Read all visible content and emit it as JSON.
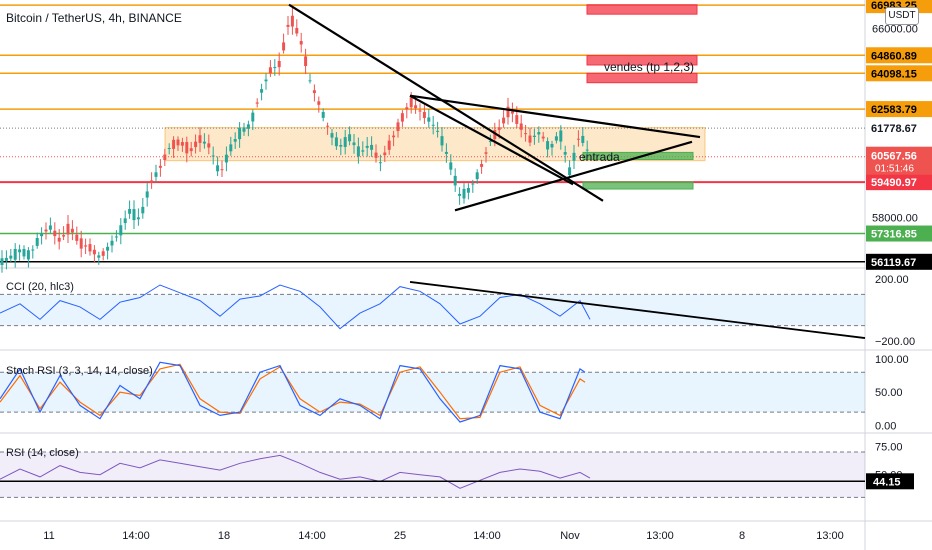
{
  "header": {
    "title": "Bitcoin / TetherUS, 4h, BINANCE",
    "currency_button": "USDT"
  },
  "colors": {
    "up": "#26a69a",
    "down": "#ef5350",
    "orange": "#f59d0b",
    "red": "#f23645",
    "green": "#4caf50",
    "cci": "#2962ff",
    "stoch_k": "#2962ff",
    "stoch_d": "#ff6d00",
    "rsi": "#7e57c2"
  },
  "annotations": {
    "sell_note": "vendes (tp 1,2,3)",
    "entry_note": "entrada"
  },
  "chart_data": [
    {
      "type": "candlestick",
      "pane": "price",
      "ylim": [
        55900,
        67200
      ],
      "x_ticks": [
        "11",
        "14:00",
        "18",
        "14:00",
        "25",
        "14:00",
        "Nov",
        "13:00",
        "8",
        "13:00"
      ],
      "y_ticks": [
        58000,
        66000
      ],
      "horizontal_levels": [
        {
          "value": 66983.25,
          "label": "66983.25",
          "color": "orange"
        },
        {
          "value": 64860.89,
          "label": "64860.89",
          "color": "orange"
        },
        {
          "value": 64098.15,
          "label": "64098.15",
          "color": "orange"
        },
        {
          "value": 62583.79,
          "label": "62583.79",
          "color": "orange"
        },
        {
          "value": 61778.67,
          "label": "61778.67",
          "color": "neutral"
        },
        {
          "value": 59490.97,
          "label": "59490.97",
          "color": "red"
        },
        {
          "value": 57316.85,
          "label": "57316.85",
          "color": "green"
        },
        {
          "value": 56119.67,
          "label": "56119.67",
          "color": "black"
        }
      ],
      "last_price": {
        "value": 60567.56,
        "label": "60567.56",
        "countdown": "01:51:46"
      },
      "close_path": [
        [
          0,
          56100
        ],
        [
          10,
          56300
        ],
        [
          20,
          56600
        ],
        [
          30,
          56400
        ],
        [
          40,
          57200
        ],
        [
          50,
          57600
        ],
        [
          60,
          57000
        ],
        [
          70,
          57600
        ],
        [
          80,
          56900
        ],
        [
          90,
          56700
        ],
        [
          100,
          56300
        ],
        [
          110,
          56800
        ],
        [
          120,
          57400
        ],
        [
          130,
          58300
        ],
        [
          140,
          57900
        ],
        [
          150,
          59400
        ],
        [
          160,
          60100
        ],
        [
          170,
          61000
        ],
        [
          180,
          61200
        ],
        [
          190,
          60800
        ],
        [
          200,
          61300
        ],
        [
          210,
          61000
        ],
        [
          220,
          59800
        ],
        [
          230,
          60900
        ],
        [
          240,
          61600
        ],
        [
          250,
          61900
        ],
        [
          260,
          63200
        ],
        [
          270,
          64200
        ],
        [
          280,
          64500
        ],
        [
          290,
          66500
        ],
        [
          300,
          65600
        ],
        [
          310,
          63800
        ],
        [
          320,
          62700
        ],
        [
          330,
          61600
        ],
        [
          340,
          61000
        ],
        [
          350,
          61400
        ],
        [
          360,
          60700
        ],
        [
          370,
          61100
        ],
        [
          380,
          60300
        ],
        [
          390,
          61100
        ],
        [
          400,
          62000
        ],
        [
          410,
          62900
        ],
        [
          420,
          62500
        ],
        [
          430,
          62100
        ],
        [
          440,
          61500
        ],
        [
          450,
          60300
        ],
        [
          460,
          58900
        ],
        [
          470,
          59200
        ],
        [
          480,
          60000
        ],
        [
          490,
          61200
        ],
        [
          500,
          61800
        ],
        [
          510,
          62600
        ],
        [
          520,
          61900
        ],
        [
          530,
          61300
        ],
        [
          540,
          61600
        ],
        [
          550,
          60900
        ],
        [
          560,
          61600
        ],
        [
          570,
          59900
        ],
        [
          580,
          61600
        ],
        [
          590,
          60570
        ]
      ],
      "drawings": [
        {
          "kind": "trendline",
          "from": [
            289,
            67000
          ],
          "to": [
            603,
            58700
          ]
        },
        {
          "kind": "trendline",
          "from": [
            410,
            63150
          ],
          "to": [
            573,
            59400
          ]
        },
        {
          "kind": "trendline",
          "from": [
            410,
            63150
          ],
          "to": [
            700,
            61400
          ]
        },
        {
          "kind": "trendline",
          "from": [
            455,
            58300
          ],
          "to": [
            692,
            61200
          ]
        },
        {
          "kind": "zone",
          "color": "orange",
          "from": [
            165,
            61800
          ],
          "to": [
            705,
            60400
          ]
        },
        {
          "kind": "box",
          "color": "red",
          "from": [
            587,
            67000
          ],
          "to": [
            697,
            66600
          ]
        },
        {
          "kind": "box",
          "color": "red",
          "from": [
            587,
            64850
          ],
          "to": [
            697,
            64450
          ]
        },
        {
          "kind": "box",
          "color": "red",
          "from": [
            587,
            64100
          ],
          "to": [
            697,
            63700
          ]
        },
        {
          "kind": "box",
          "color": "green",
          "from": [
            583,
            60750
          ],
          "to": [
            693,
            60450
          ]
        },
        {
          "kind": "box",
          "color": "green",
          "from": [
            583,
            59500
          ],
          "to": [
            693,
            59200
          ]
        }
      ]
    },
    {
      "type": "line",
      "pane": "CCI",
      "title": "CCI (20, hlc3)",
      "ylim": [
        -250,
        250
      ],
      "y_ticks": [
        200,
        -200
      ],
      "y_tick_labels": [
        "200.00",
        "−200.00"
      ],
      "bands": [
        100,
        -100
      ],
      "x": [
        0,
        20,
        40,
        60,
        80,
        100,
        120,
        140,
        160,
        180,
        200,
        220,
        240,
        260,
        280,
        300,
        320,
        340,
        360,
        380,
        400,
        420,
        440,
        460,
        480,
        500,
        520,
        540,
        560,
        580,
        590
      ],
      "values": [
        -20,
        40,
        -60,
        60,
        20,
        -60,
        50,
        80,
        160,
        110,
        60,
        -40,
        70,
        90,
        160,
        120,
        20,
        -120,
        -20,
        40,
        150,
        120,
        40,
        -90,
        -40,
        80,
        100,
        40,
        -40,
        60,
        -60
      ],
      "drawings": [
        {
          "kind": "trendline",
          "from": [
            410,
            180
          ],
          "to": [
            865,
            -180
          ]
        }
      ]
    },
    {
      "type": "line",
      "pane": "Stoch RSI",
      "title": "Stoch RSI (3, 3, 14, 14, close)",
      "ylim": [
        -10,
        112
      ],
      "y_ticks": [
        100,
        50,
        0
      ],
      "y_tick_labels": [
        "100.00",
        "50.00",
        "0.00"
      ],
      "bands": [
        80,
        20
      ],
      "x": [
        0,
        20,
        40,
        60,
        80,
        100,
        120,
        140,
        160,
        180,
        200,
        220,
        240,
        260,
        280,
        300,
        320,
        340,
        360,
        380,
        400,
        420,
        440,
        460,
        480,
        500,
        520,
        540,
        560,
        580,
        585
      ],
      "series": [
        {
          "name": "K",
          "values": [
            40,
            85,
            20,
            75,
            30,
            10,
            60,
            40,
            95,
            90,
            30,
            15,
            20,
            80,
            90,
            30,
            15,
            40,
            30,
            10,
            90,
            85,
            40,
            5,
            15,
            90,
            85,
            20,
            10,
            85,
            80
          ]
        },
        {
          "name": "D",
          "values": [
            35,
            75,
            25,
            65,
            35,
            15,
            50,
            45,
            85,
            92,
            40,
            20,
            18,
            70,
            88,
            40,
            20,
            35,
            32,
            15,
            80,
            88,
            50,
            10,
            12,
            80,
            88,
            30,
            15,
            70,
            65
          ]
        }
      ]
    },
    {
      "type": "line",
      "pane": "RSI",
      "title": "RSI (14, close)",
      "ylim": [
        10,
        85
      ],
      "y_ticks": [
        75,
        50
      ],
      "y_tick_labels": [
        "75.00",
        "50.00"
      ],
      "bands": [
        70,
        30
      ],
      "horizontal_levels": [
        {
          "value": 44.15,
          "label": "44.15",
          "color": "black"
        }
      ],
      "x": [
        0,
        20,
        40,
        60,
        80,
        100,
        120,
        140,
        160,
        180,
        200,
        220,
        240,
        260,
        280,
        300,
        320,
        340,
        360,
        380,
        400,
        420,
        440,
        460,
        480,
        500,
        520,
        540,
        560,
        580,
        590
      ],
      "values": [
        46,
        55,
        48,
        58,
        52,
        50,
        60,
        56,
        63,
        60,
        57,
        54,
        60,
        64,
        67,
        60,
        52,
        46,
        48,
        44,
        52,
        50,
        48,
        38,
        45,
        52,
        55,
        53,
        47,
        52,
        47
      ]
    }
  ]
}
